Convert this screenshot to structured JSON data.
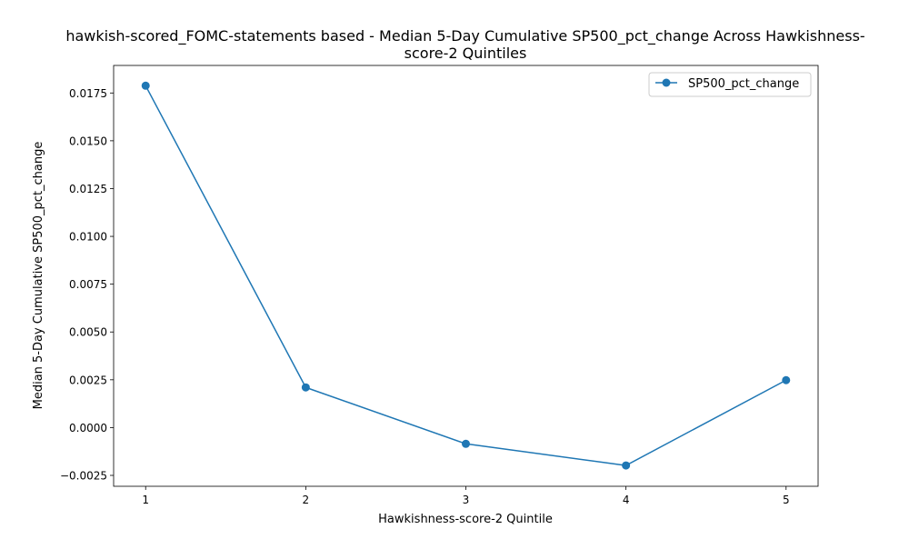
{
  "chart_data": {
    "type": "line",
    "title_line1": "hawkish-scored_FOMC-statements based - Median 5-Day Cumulative SP500_pct_change Across Hawkishness-",
    "title_line2": "score-2 Quintiles",
    "xlabel": "Hawkishness-score-2 Quintile",
    "ylabel": "Median 5-Day Cumulative SP500_pct_change",
    "x": [
      1,
      2,
      3,
      4,
      5
    ],
    "x_tick_labels": [
      "1",
      "2",
      "3",
      "4",
      "5"
    ],
    "y_ticks": [
      -0.0025,
      0.0,
      0.0025,
      0.005,
      0.0075,
      0.01,
      0.0125,
      0.015,
      0.0175
    ],
    "y_tick_labels": [
      "−0.0025",
      "0.0000",
      "0.0025",
      "0.0050",
      "0.0075",
      "0.0100",
      "0.0125",
      "0.0150",
      "0.0175"
    ],
    "xlim": [
      0.8,
      5.2
    ],
    "ylim": [
      -0.00307,
      0.01894
    ],
    "series": [
      {
        "name": "SP500_pct_change",
        "color": "#1f77b4",
        "marker": "circle",
        "values": [
          0.01788,
          0.0021,
          -0.00085,
          -0.00198,
          0.00248
        ]
      }
    ],
    "legend": {
      "position": "top-right",
      "entries": [
        "SP500_pct_change"
      ]
    },
    "grid": false
  }
}
